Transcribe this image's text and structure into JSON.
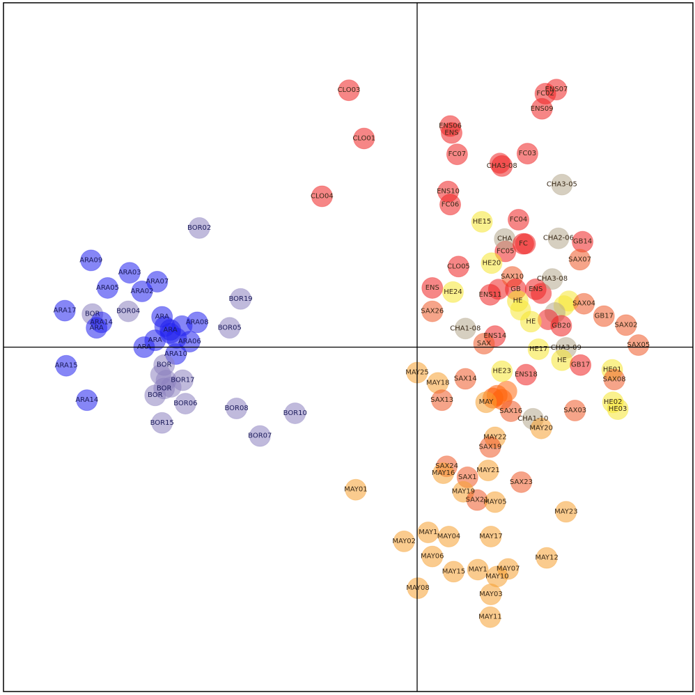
{
  "chart_data": {
    "type": "scatter",
    "title": "",
    "xlabel": "",
    "ylabel": "",
    "xlim": [
      -0.6,
      0.4
    ],
    "ylim": [
      -0.5,
      0.5
    ],
    "grid": false,
    "axes_cross_at": [
      0,
      0
    ],
    "groups": {
      "ARA": "#2222ee",
      "BOR": "#8c82c0",
      "CLO_ENS_FC_GB_CHA": "#ee2222",
      "CHA": "#b4a78c",
      "HE": "#f5e632",
      "SAX": "#ee5a28",
      "MAY": "#f5a032"
    },
    "points": [
      {
        "label": "ARA09",
        "x": -0.473,
        "y": 0.126,
        "color": "#2222ee"
      },
      {
        "label": "ARA03",
        "x": -0.417,
        "y": 0.108,
        "color": "#2222ee"
      },
      {
        "label": "ARA07",
        "x": -0.377,
        "y": 0.095,
        "color": "#2222ee"
      },
      {
        "label": "ARA05",
        "x": -0.449,
        "y": 0.086,
        "color": "#2222ee"
      },
      {
        "label": "ARA02",
        "x": -0.399,
        "y": 0.081,
        "color": "#2222ee"
      },
      {
        "label": "ARA17",
        "x": -0.511,
        "y": 0.053,
        "color": "#2222ee"
      },
      {
        "label": "BOR",
        "x": -0.471,
        "y": 0.048,
        "color": "#8c82c0"
      },
      {
        "label": "ARA14",
        "x": -0.458,
        "y": 0.036,
        "color": "#2222ee"
      },
      {
        "label": "ARA",
        "x": -0.465,
        "y": 0.028,
        "color": "#2222ee"
      },
      {
        "label": "BOR04",
        "x": -0.419,
        "y": 0.052,
        "color": "#8c82c0"
      },
      {
        "label": "ARA08",
        "x": -0.319,
        "y": 0.036,
        "color": "#2222ee"
      },
      {
        "label": "ARA",
        "x": -0.37,
        "y": 0.044,
        "color": "#2222ee"
      },
      {
        "label": "ARA",
        "x": -0.358,
        "y": 0.025,
        "color": "#2222ee"
      },
      {
        "label": "ARA06",
        "x": -0.33,
        "y": 0.008,
        "color": "#2222ee"
      },
      {
        "label": "ARA",
        "x": -0.38,
        "y": 0.01,
        "color": "#2222ee"
      },
      {
        "label": "ARA",
        "x": -0.396,
        "y": 0.0,
        "color": "#2222ee"
      },
      {
        "label": "ARA10",
        "x": -0.35,
        "y": -0.01,
        "color": "#2222ee"
      },
      {
        "label": "ARA15",
        "x": -0.509,
        "y": -0.027,
        "color": "#2222ee"
      },
      {
        "label": "ARA14",
        "x": -0.479,
        "y": -0.077,
        "color": "#2222ee"
      },
      {
        "label": "BOR02",
        "x": -0.316,
        "y": 0.173,
        "color": "#8c82c0"
      },
      {
        "label": "BOR19",
        "x": -0.256,
        "y": 0.07,
        "color": "#8c82c0"
      },
      {
        "label": "BOR05",
        "x": -0.272,
        "y": 0.028,
        "color": "#8c82c0"
      },
      {
        "label": "BOR",
        "x": -0.367,
        "y": -0.026,
        "color": "#8c82c0"
      },
      {
        "label": "BOR17",
        "x": -0.34,
        "y": -0.048,
        "color": "#8c82c0"
      },
      {
        "label": "BOR",
        "x": -0.367,
        "y": -0.06,
        "color": "#8c82c0"
      },
      {
        "label": "BOR",
        "x": -0.38,
        "y": -0.07,
        "color": "#8c82c0"
      },
      {
        "label": "BOR06",
        "x": -0.336,
        "y": -0.082,
        "color": "#8c82c0"
      },
      {
        "label": "BOR15",
        "x": -0.37,
        "y": -0.11,
        "color": "#8c82c0"
      },
      {
        "label": "BOR08",
        "x": -0.262,
        "y": -0.089,
        "color": "#8c82c0"
      },
      {
        "label": "BOR07",
        "x": -0.228,
        "y": -0.129,
        "color": "#8c82c0"
      },
      {
        "label": "BOR10",
        "x": -0.177,
        "y": -0.096,
        "color": "#8c82c0"
      },
      {
        "label": "CLO03",
        "x": -0.099,
        "y": 0.373,
        "color": "#ee2222"
      },
      {
        "label": "CLO01",
        "x": -0.077,
        "y": 0.303,
        "color": "#ee2222"
      },
      {
        "label": "CLO04",
        "x": -0.138,
        "y": 0.219,
        "color": "#ee2222"
      },
      {
        "label": "ENS07",
        "x": 0.202,
        "y": 0.374,
        "color": "#ee2222"
      },
      {
        "label": "FC02",
        "x": 0.186,
        "y": 0.368,
        "color": "#ee2222"
      },
      {
        "label": "ENS09",
        "x": 0.181,
        "y": 0.346,
        "color": "#ee2222"
      },
      {
        "label": "ENS06",
        "x": 0.048,
        "y": 0.321,
        "color": "#ee2222"
      },
      {
        "label": "ENS",
        "x": 0.05,
        "y": 0.311,
        "color": "#ee2222"
      },
      {
        "label": "FC07",
        "x": 0.058,
        "y": 0.28,
        "color": "#ee2222"
      },
      {
        "label": "FC03",
        "x": 0.16,
        "y": 0.281,
        "color": "#ee2222"
      },
      {
        "label": "CHA3-08",
        "x": 0.123,
        "y": 0.263,
        "color": "#ee2222"
      },
      {
        "label": "ENS10",
        "x": 0.045,
        "y": 0.226,
        "color": "#ee2222"
      },
      {
        "label": "FC06",
        "x": 0.048,
        "y": 0.207,
        "color": "#ee2222"
      },
      {
        "label": "CHA3-05",
        "x": 0.21,
        "y": 0.236,
        "color": "#b4a78c"
      },
      {
        "label": "HE15",
        "x": 0.094,
        "y": 0.182,
        "color": "#f5e632"
      },
      {
        "label": "FC04",
        "x": 0.147,
        "y": 0.185,
        "color": "#ee2222"
      },
      {
        "label": "CHA2-06",
        "x": 0.205,
        "y": 0.158,
        "color": "#b4a78c"
      },
      {
        "label": "GB14",
        "x": 0.24,
        "y": 0.153,
        "color": "#ee2222"
      },
      {
        "label": "FC05",
        "x": 0.128,
        "y": 0.139,
        "color": "#ee2222"
      },
      {
        "label": "CHA",
        "x": 0.127,
        "y": 0.157,
        "color": "#b4a78c"
      },
      {
        "label": "FC",
        "x": 0.154,
        "y": 0.15,
        "color": "#ee2222"
      },
      {
        "label": "HE20",
        "x": 0.108,
        "y": 0.122,
        "color": "#f5e632"
      },
      {
        "label": "SAX07",
        "x": 0.236,
        "y": 0.127,
        "color": "#ee5a28"
      },
      {
        "label": "CLO05",
        "x": 0.06,
        "y": 0.117,
        "color": "#ee2222"
      },
      {
        "label": "SAX10",
        "x": 0.138,
        "y": 0.102,
        "color": "#ee5a28"
      },
      {
        "label": "CHA3-08",
        "x": 0.196,
        "y": 0.099,
        "color": "#b4a78c"
      },
      {
        "label": "ENS",
        "x": 0.022,
        "y": 0.086,
        "color": "#ee2222"
      },
      {
        "label": "HE24",
        "x": 0.052,
        "y": 0.08,
        "color": "#f5e632"
      },
      {
        "label": "ENS11",
        "x": 0.106,
        "y": 0.076,
        "color": "#ee2222"
      },
      {
        "label": "GB",
        "x": 0.143,
        "y": 0.084,
        "color": "#ee2222"
      },
      {
        "label": "ENS",
        "x": 0.172,
        "y": 0.084,
        "color": "#ee2222"
      },
      {
        "label": "HE",
        "x": 0.146,
        "y": 0.067,
        "color": "#f5e632"
      },
      {
        "label": "SAX04",
        "x": 0.242,
        "y": 0.063,
        "color": "#ee5a28"
      },
      {
        "label": "SAX26",
        "x": 0.022,
        "y": 0.052,
        "color": "#ee5a28"
      },
      {
        "label": "HE",
        "x": 0.165,
        "y": 0.037,
        "color": "#f5e632"
      },
      {
        "label": "GB20",
        "x": 0.209,
        "y": 0.031,
        "color": "#ee2222"
      },
      {
        "label": "GB17",
        "x": 0.271,
        "y": 0.045,
        "color": "#ee5a28"
      },
      {
        "label": "SAX02",
        "x": 0.303,
        "y": 0.032,
        "color": "#ee5a28"
      },
      {
        "label": "CHA1-08",
        "x": 0.07,
        "y": 0.027,
        "color": "#b4a78c"
      },
      {
        "label": "ENS14",
        "x": 0.113,
        "y": 0.016,
        "color": "#ee2222"
      },
      {
        "label": "SAX",
        "x": 0.097,
        "y": 0.005,
        "color": "#ee5a28"
      },
      {
        "label": "SAX05",
        "x": 0.321,
        "y": 0.003,
        "color": "#ee5a28"
      },
      {
        "label": "HE17",
        "x": 0.176,
        "y": -0.003,
        "color": "#f5e632"
      },
      {
        "label": "CHA3-09",
        "x": 0.216,
        "y": -0.001,
        "color": "#b4a78c"
      },
      {
        "label": "HE",
        "x": 0.21,
        "y": -0.019,
        "color": "#f5e632"
      },
      {
        "label": "GB17",
        "x": 0.237,
        "y": -0.026,
        "color": "#ee2222"
      },
      {
        "label": "HE01",
        "x": 0.283,
        "y": -0.033,
        "color": "#f5e632"
      },
      {
        "label": "SAX08",
        "x": 0.286,
        "y": -0.047,
        "color": "#ee5a28"
      },
      {
        "label": "HE23",
        "x": 0.123,
        "y": -0.035,
        "color": "#f5e632"
      },
      {
        "label": "ENS18",
        "x": 0.158,
        "y": -0.04,
        "color": "#ee2222"
      },
      {
        "label": "HE02",
        "x": 0.284,
        "y": -0.08,
        "color": "#f5e632"
      },
      {
        "label": "HE03",
        "x": 0.291,
        "y": -0.09,
        "color": "#f5e632"
      },
      {
        "label": "SAX14",
        "x": 0.07,
        "y": -0.046,
        "color": "#ee5a28"
      },
      {
        "label": "MAY25",
        "x": 0.0,
        "y": -0.037,
        "color": "#f5a032"
      },
      {
        "label": "MAY18",
        "x": 0.03,
        "y": -0.052,
        "color": "#f5a032"
      },
      {
        "label": "SAX13",
        "x": 0.036,
        "y": -0.077,
        "color": "#ee5a28"
      },
      {
        "label": "MAY",
        "x": 0.1,
        "y": -0.08,
        "color": "#f5a032"
      },
      {
        "label": "SAX16",
        "x": 0.136,
        "y": -0.093,
        "color": "#ee5a28"
      },
      {
        "label": "CHA1-10",
        "x": 0.168,
        "y": -0.104,
        "color": "#b4a78c"
      },
      {
        "label": "SAX03",
        "x": 0.229,
        "y": -0.092,
        "color": "#ee5a28"
      },
      {
        "label": "MAY20",
        "x": 0.18,
        "y": -0.118,
        "color": "#f5a032"
      },
      {
        "label": "MAY22",
        "x": 0.113,
        "y": -0.131,
        "color": "#f5a032"
      },
      {
        "label": "SAX19",
        "x": 0.106,
        "y": -0.145,
        "color": "#ee5a28"
      },
      {
        "label": "SAX24",
        "x": 0.043,
        "y": -0.173,
        "color": "#ee5a28"
      },
      {
        "label": "MAY16",
        "x": 0.038,
        "y": -0.183,
        "color": "#f5a032"
      },
      {
        "label": "MAY21",
        "x": 0.103,
        "y": -0.179,
        "color": "#f5a032"
      },
      {
        "label": "SAX1",
        "x": 0.073,
        "y": -0.189,
        "color": "#ee5a28"
      },
      {
        "label": "SAX23",
        "x": 0.151,
        "y": -0.196,
        "color": "#ee5a28"
      },
      {
        "label": "MAY19",
        "x": 0.067,
        "y": -0.21,
        "color": "#f5a032"
      },
      {
        "label": "SAX21",
        "x": 0.087,
        "y": -0.222,
        "color": "#ee5a28"
      },
      {
        "label": "MAY05",
        "x": 0.113,
        "y": -0.225,
        "color": "#f5a032"
      },
      {
        "label": "MAY01",
        "x": -0.089,
        "y": -0.207,
        "color": "#f5a032"
      },
      {
        "label": "MAY23",
        "x": 0.216,
        "y": -0.239,
        "color": "#f5a032"
      },
      {
        "label": "MAY02",
        "x": -0.019,
        "y": -0.282,
        "color": "#f5a032"
      },
      {
        "label": "MAY1",
        "x": 0.016,
        "y": -0.269,
        "color": "#f5a032"
      },
      {
        "label": "MAY04",
        "x": 0.046,
        "y": -0.275,
        "color": "#f5a032"
      },
      {
        "label": "MAY17",
        "x": 0.107,
        "y": -0.275,
        "color": "#f5a032"
      },
      {
        "label": "MAY12",
        "x": 0.188,
        "y": -0.306,
        "color": "#f5a032"
      },
      {
        "label": "MAY06",
        "x": 0.022,
        "y": -0.304,
        "color": "#f5a032"
      },
      {
        "label": "MAY15",
        "x": 0.053,
        "y": -0.326,
        "color": "#f5a032"
      },
      {
        "label": "MAY1",
        "x": 0.088,
        "y": -0.323,
        "color": "#f5a032"
      },
      {
        "label": "MAY07",
        "x": 0.132,
        "y": -0.322,
        "color": "#f5a032"
      },
      {
        "label": "MAY10",
        "x": 0.116,
        "y": -0.333,
        "color": "#f5a032"
      },
      {
        "label": "MAY08",
        "x": 0.001,
        "y": -0.35,
        "color": "#f5a032"
      },
      {
        "label": "MAY03",
        "x": 0.107,
        "y": -0.359,
        "color": "#f5a032"
      },
      {
        "label": "MAY11",
        "x": 0.106,
        "y": -0.392,
        "color": "#f5a032"
      }
    ],
    "blobs": [
      {
        "x": -0.358,
        "y": 0.02,
        "color": "#2222ee"
      },
      {
        "x": -0.349,
        "y": 0.013,
        "color": "#2222ee"
      },
      {
        "x": -0.341,
        "y": 0.031,
        "color": "#2222ee"
      },
      {
        "x": -0.366,
        "y": 0.03,
        "color": "#2222ee"
      },
      {
        "x": -0.364,
        "y": -0.048,
        "color": "#8c82c0"
      },
      {
        "x": -0.357,
        "y": -0.058,
        "color": "#8c82c0"
      },
      {
        "x": -0.372,
        "y": -0.04,
        "color": "#8c82c0"
      },
      {
        "x": 0.116,
        "y": -0.07,
        "color": "#ff5a00"
      },
      {
        "x": 0.123,
        "y": -0.076,
        "color": "#ff5a00"
      },
      {
        "x": 0.11,
        "y": -0.074,
        "color": "#ff5a00"
      },
      {
        "x": 0.13,
        "y": -0.064,
        "color": "#ff6a10"
      },
      {
        "x": 0.12,
        "y": 0.267,
        "color": "#ee2222"
      },
      {
        "x": 0.157,
        "y": 0.15,
        "color": "#ee2222"
      },
      {
        "x": 0.213,
        "y": 0.06,
        "color": "#f5e632"
      },
      {
        "x": 0.22,
        "y": 0.067,
        "color": "#f5e632"
      },
      {
        "x": 0.2,
        "y": 0.05,
        "color": "#b4a78c"
      },
      {
        "x": 0.118,
        "y": 0.084,
        "color": "#ee2222"
      },
      {
        "x": 0.18,
        "y": 0.078,
        "color": "#ee2222"
      },
      {
        "x": 0.19,
        "y": 0.04,
        "color": "#ee2222"
      },
      {
        "x": 0.15,
        "y": 0.054,
        "color": "#f5e632"
      }
    ]
  }
}
